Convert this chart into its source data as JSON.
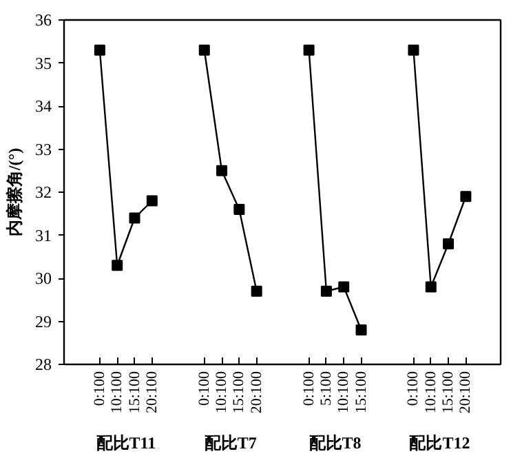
{
  "chart_data": {
    "type": "line",
    "ylabel": "内摩擦角/(°)",
    "marker": "square",
    "ylim": [
      28,
      36
    ],
    "yticks": [
      28,
      29,
      30,
      31,
      32,
      33,
      34,
      35,
      36
    ],
    "categories": [
      "0:100",
      "10:100",
      "15:100",
      "20:100",
      null,
      null,
      "0:100",
      "10:100",
      "15:100",
      "20:100",
      null,
      null,
      "0:100",
      "5:100",
      "10:100",
      "15:100",
      null,
      null,
      "0:100",
      "10:100",
      "15:100",
      "20:100"
    ],
    "annotations": [
      "配比T11",
      "配比T7",
      "配比T8",
      "配比T12"
    ],
    "series": [
      {
        "color": "#000000",
        "values": [
          35.3,
          30.3,
          31.4,
          31.8,
          null,
          null,
          null,
          null,
          null,
          null,
          null,
          null,
          null,
          null,
          null,
          null,
          null,
          null,
          null,
          null,
          null,
          null
        ]
      },
      {
        "color": "#000000",
        "values": [
          null,
          null,
          null,
          null,
          null,
          null,
          35.3,
          32.5,
          31.6,
          29.7,
          null,
          null,
          null,
          null,
          null,
          null,
          null,
          null,
          null,
          null,
          null,
          null
        ]
      },
      {
        "color": "#000000",
        "values": [
          null,
          null,
          null,
          null,
          null,
          null,
          null,
          null,
          null,
          null,
          null,
          null,
          35.3,
          29.7,
          29.8,
          28.8,
          null,
          null,
          null,
          null,
          null,
          null
        ]
      },
      {
        "color": "#000000",
        "values": [
          null,
          null,
          null,
          null,
          null,
          null,
          null,
          null,
          null,
          null,
          null,
          null,
          null,
          null,
          null,
          null,
          null,
          null,
          35.3,
          29.8,
          30.8,
          31.9
        ]
      }
    ]
  }
}
